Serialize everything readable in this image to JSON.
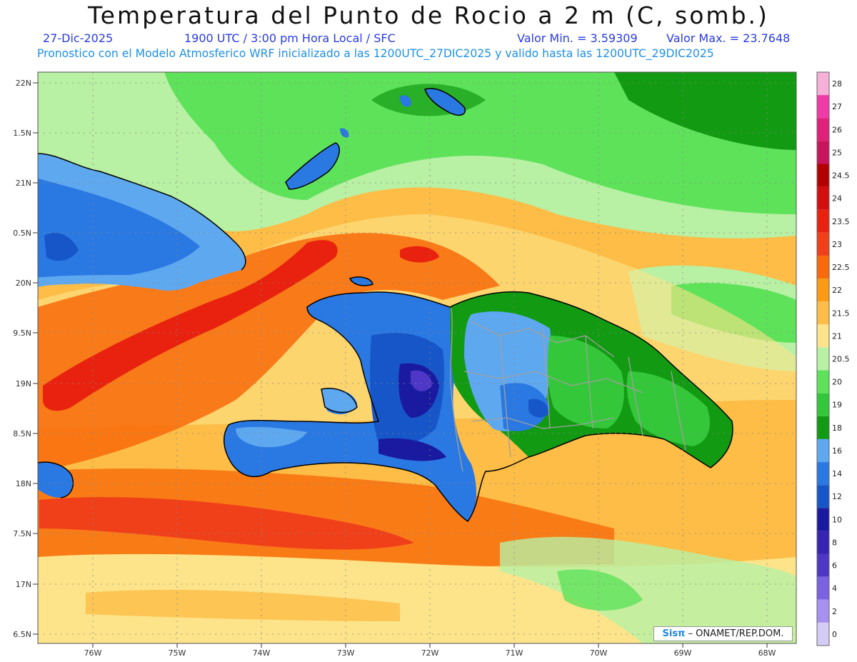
{
  "header": {
    "title": "Temperatura del Punto de Rocio a 2 m (C, somb.)",
    "date": "27-Dic-2025",
    "time": "1900 UTC / 3:00 pm Hora Local / SFC",
    "min": "Valor Min. = 3.59309",
    "max": "Valor Max. = 23.7648",
    "model_line": "Pronostico con el Modelo Atmosferico WRF inicializado a las 1200UTC_27DIC2025 y valido hasta las  1200UTC_29DIC2025"
  },
  "axes": {
    "lat_labels": [
      "22N",
      "1.5N",
      "21N",
      "0.5N",
      "20N",
      "9.5N",
      "19N",
      "8.5N",
      "18N",
      "7.5N",
      "17N",
      "6.5N"
    ],
    "lon_labels": [
      "76W",
      "75W",
      "74W",
      "73W",
      "72W",
      "71W",
      "70W",
      "69W",
      "68W"
    ]
  },
  "colorbar": {
    "labels": [
      "28",
      "27",
      "26",
      "25",
      "24.5",
      "24",
      "23.5",
      "23",
      "22.5",
      "22",
      "21.5",
      "21",
      "20.5",
      "20",
      "19",
      "18",
      "16",
      "14",
      "12",
      "10",
      "8",
      "6",
      "4",
      "2",
      "0"
    ],
    "colors": [
      "#f7b0d8",
      "#f03aa8",
      "#e0207a",
      "#c8145a",
      "#b40000",
      "#d40d0d",
      "#e8220e",
      "#f0401a",
      "#f86a0a",
      "#fb9a14",
      "#fdbd46",
      "#fde48a",
      "#b8f0a4",
      "#5ee25a",
      "#34c73a",
      "#129a12",
      "#5ea8f0",
      "#2a78e2",
      "#1656c8",
      "#1a1aa0",
      "#3624b2",
      "#4e36c6",
      "#7a62e0",
      "#a690f0",
      "#d4ccf4"
    ]
  },
  "credit": {
    "sis": "Sisπ",
    "rest": " – ONAMET/REP.DOM."
  }
}
